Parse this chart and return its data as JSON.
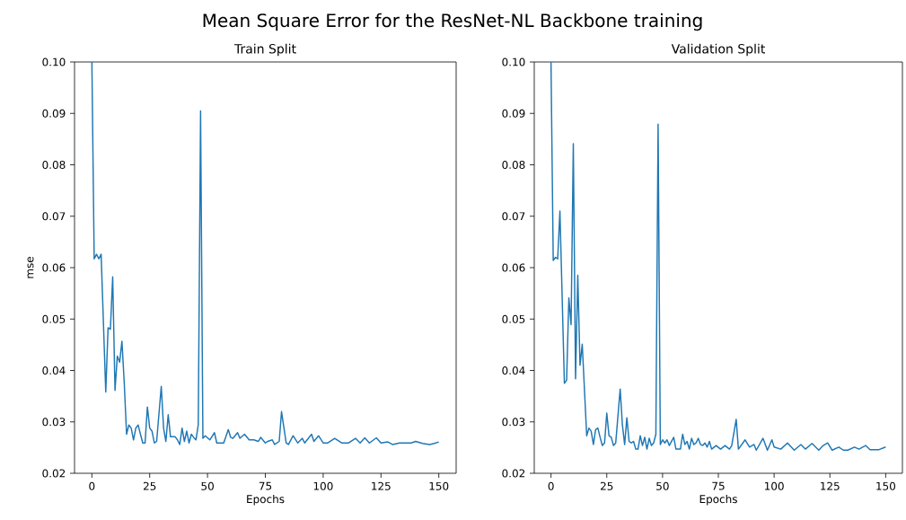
{
  "chart_data": [
    {
      "type": "line",
      "title": "Mean Square Error for the ResNet-NL Backbone training",
      "subtitle": "Train Split",
      "xlabel": "Epochs",
      "ylabel": "mse",
      "color": "#1f77b4",
      "x": [
        0,
        1,
        2,
        3,
        4,
        6,
        7,
        8,
        9,
        10,
        11,
        12,
        13,
        14,
        15,
        16,
        17,
        18,
        19,
        20,
        21,
        22,
        23,
        24,
        25,
        26,
        27,
        28,
        30,
        31,
        32,
        33,
        34,
        36,
        37,
        38,
        39,
        40,
        41,
        42,
        43,
        44,
        45,
        46,
        47,
        48,
        49,
        51,
        53,
        54,
        57,
        59,
        60,
        61,
        63,
        64,
        66,
        68,
        70,
        72,
        73,
        75,
        76,
        78,
        79,
        81,
        82,
        84,
        85,
        87,
        89,
        91,
        92,
        95,
        96,
        98,
        100,
        102,
        105,
        108,
        111,
        114,
        116,
        118,
        120,
        123,
        125,
        128,
        130,
        133,
        135,
        138,
        140,
        143,
        146,
        148,
        150
      ],
      "values": [
        0.1,
        0.0617,
        0.0626,
        0.0617,
        0.0626,
        0.0358,
        0.0483,
        0.048,
        0.0582,
        0.0361,
        0.0428,
        0.0416,
        0.0457,
        0.0375,
        0.0276,
        0.0294,
        0.0288,
        0.0265,
        0.0288,
        0.0294,
        0.0276,
        0.0259,
        0.0259,
        0.0329,
        0.0288,
        0.0282,
        0.0259,
        0.0262,
        0.0369,
        0.0288,
        0.0262,
        0.0314,
        0.0271,
        0.0271,
        0.0265,
        0.0256,
        0.0288,
        0.0262,
        0.0282,
        0.0259,
        0.0276,
        0.027,
        0.0265,
        0.0294,
        0.0905,
        0.0268,
        0.0273,
        0.0265,
        0.0279,
        0.0259,
        0.0259,
        0.0285,
        0.027,
        0.0268,
        0.0279,
        0.0268,
        0.0276,
        0.0265,
        0.0265,
        0.0262,
        0.027,
        0.0259,
        0.0262,
        0.0265,
        0.0256,
        0.0262,
        0.032,
        0.0259,
        0.0256,
        0.0273,
        0.0259,
        0.0268,
        0.0259,
        0.0276,
        0.0262,
        0.0273,
        0.0259,
        0.0259,
        0.0268,
        0.0259,
        0.0259,
        0.0268,
        0.0259,
        0.0269,
        0.0259,
        0.0269,
        0.0259,
        0.0261,
        0.0256,
        0.0259,
        0.0259,
        0.0259,
        0.0262,
        0.0258,
        0.0256,
        0.0258,
        0.0261
      ],
      "xlim": [
        -7.5,
        157.5
      ],
      "xticks": [
        0,
        25,
        50,
        75,
        100,
        125,
        150
      ],
      "ylim": [
        0.02,
        0.1
      ],
      "yticks": [
        0.02,
        0.03,
        0.04,
        0.05,
        0.06,
        0.07,
        0.08,
        0.09,
        {
          "value": 0.1,
          "label": "0.10"
        }
      ]
    },
    {
      "type": "line",
      "subtitle": "Validation Split",
      "xlabel": "Epochs",
      "color": "#1f77b4",
      "x": [
        0,
        1,
        2,
        3,
        4,
        6,
        7,
        8,
        9,
        10,
        11,
        12,
        13,
        14,
        16,
        17,
        18,
        19,
        20,
        21,
        22,
        23,
        24,
        25,
        26,
        27,
        28,
        29,
        31,
        32,
        33,
        34,
        35,
        36,
        37,
        38,
        39,
        40,
        41,
        42,
        43,
        44,
        45,
        46,
        47,
        48,
        49,
        50,
        51,
        52,
        53,
        55,
        56,
        58,
        59,
        60,
        61,
        62,
        63,
        64,
        65,
        66,
        67,
        68,
        69,
        70,
        71,
        72,
        74,
        76,
        78,
        80,
        81,
        83,
        84,
        87,
        89,
        91,
        92,
        95,
        97,
        99,
        100,
        103,
        106,
        109,
        112,
        114,
        117,
        120,
        122,
        124,
        126,
        129,
        131,
        133,
        136,
        138,
        141,
        143,
        147,
        150
      ],
      "values": [
        0.1,
        0.0614,
        0.062,
        0.0617,
        0.071,
        0.0375,
        0.0381,
        0.0541,
        0.0489,
        0.0841,
        0.0384,
        0.0585,
        0.041,
        0.0451,
        0.0273,
        0.0288,
        0.0282,
        0.0256,
        0.0285,
        0.0288,
        0.027,
        0.0254,
        0.0259,
        0.0317,
        0.0273,
        0.027,
        0.0254,
        0.0259,
        0.0364,
        0.0294,
        0.0256,
        0.0308,
        0.0262,
        0.0259,
        0.0262,
        0.0247,
        0.0247,
        0.0273,
        0.0254,
        0.027,
        0.0247,
        0.0268,
        0.0254,
        0.0259,
        0.0276,
        0.0879,
        0.0256,
        0.0265,
        0.0259,
        0.0265,
        0.0254,
        0.027,
        0.0247,
        0.0247,
        0.0276,
        0.0256,
        0.0262,
        0.0247,
        0.0268,
        0.0256,
        0.0259,
        0.0268,
        0.0256,
        0.0254,
        0.0259,
        0.0251,
        0.0262,
        0.0247,
        0.0254,
        0.0247,
        0.0254,
        0.0247,
        0.0254,
        0.0305,
        0.0247,
        0.0265,
        0.0251,
        0.0256,
        0.0245,
        0.0268,
        0.0245,
        0.0265,
        0.0251,
        0.0247,
        0.0259,
        0.0245,
        0.0256,
        0.0247,
        0.0258,
        0.0245,
        0.0254,
        0.0259,
        0.0245,
        0.0251,
        0.0245,
        0.0245,
        0.0251,
        0.0247,
        0.0254,
        0.0246,
        0.0246,
        0.0251
      ],
      "xlim": [
        -7.5,
        157.5
      ],
      "xticks": [
        0,
        25,
        50,
        75,
        100,
        125,
        150
      ],
      "ylim": [
        0.02,
        0.1
      ],
      "yticks": [
        0.02,
        0.03,
        0.04,
        0.05,
        0.06,
        0.07,
        0.08,
        0.09,
        {
          "value": 0.1,
          "label": "0.10"
        }
      ]
    }
  ]
}
